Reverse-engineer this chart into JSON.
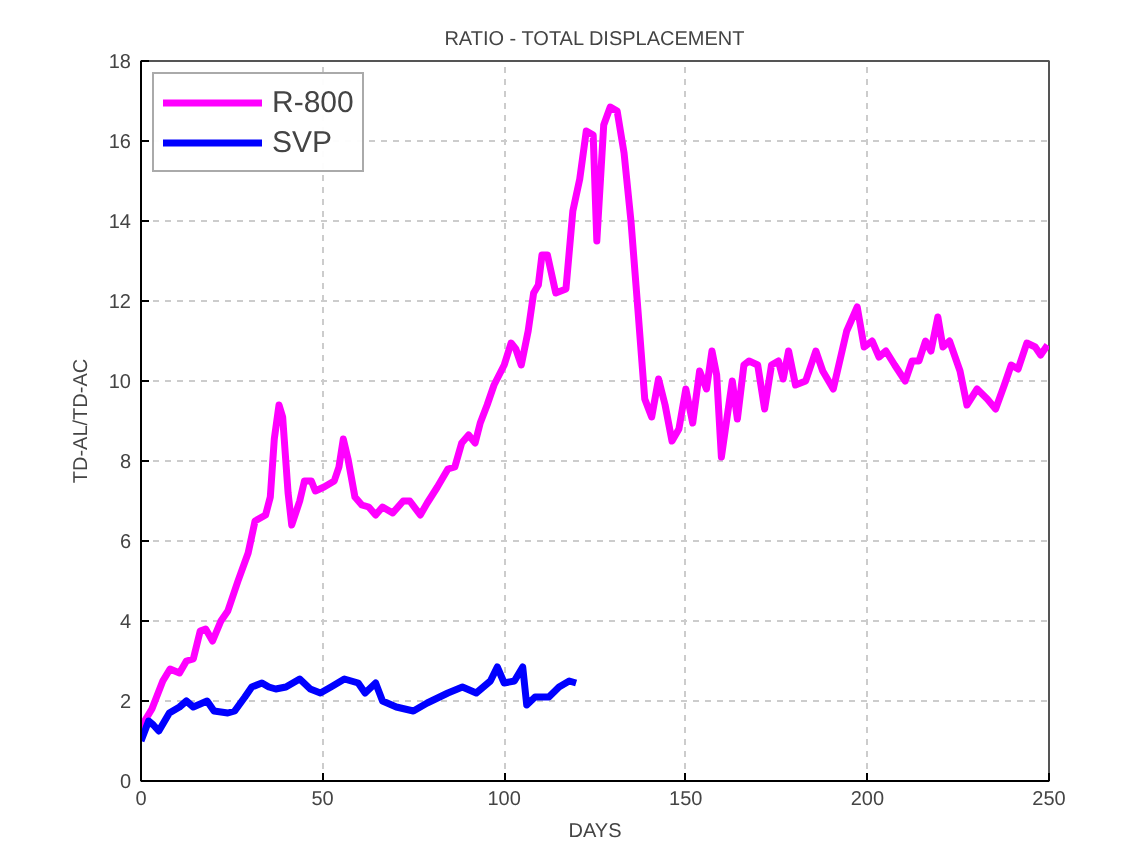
{
  "chart_data": {
    "type": "line",
    "title": "RATIO - TOTAL DISPLACEMENT",
    "xlabel": "DAYS",
    "ylabel": "TD-AL/TD-AC",
    "xlim": [
      0,
      250
    ],
    "ylim": [
      0,
      18
    ],
    "xticks": [
      0,
      50,
      100,
      150,
      200,
      250
    ],
    "yticks": [
      0,
      2,
      4,
      6,
      8,
      10,
      12,
      14,
      16,
      18
    ],
    "grid": true,
    "legend": "top left",
    "line_style": "solid",
    "marker": "none",
    "series": [
      {
        "name": "R-800",
        "color": "#ff00ff",
        "x": [
          0,
          3,
          6,
          8,
          10.6,
          12.5,
          14.4,
          16.3,
          17.8,
          19.7,
          22,
          23.9,
          26.7,
          29.5,
          31.4,
          34.3,
          35.6,
          36.7,
          38,
          39,
          40.5,
          41.5,
          43.7,
          45,
          46.9,
          48,
          50.4,
          53.2,
          54.5,
          55.7,
          57,
          58.9,
          60.8,
          62.7,
          64.6,
          66.5,
          69.3,
          72.2,
          74,
          76.9,
          78.8,
          81.6,
          84.5,
          86.4,
          88.3,
          90.2,
          92,
          93.4,
          95.3,
          97.2,
          100,
          101.9,
          103.2,
          104.7,
          106.6,
          108.1,
          109.4,
          110.4,
          111.9,
          114.2,
          117,
          118.9,
          120.8,
          122.6,
          124.5,
          125.5,
          127.4,
          129.2,
          131.1,
          133,
          134.9,
          136.8,
          138.7,
          140.6,
          142.5,
          144.3,
          146.2,
          148.1,
          150,
          151.9,
          153.8,
          155.7,
          157.2,
          158.5,
          159.8,
          161.3,
          162.8,
          164.2,
          166,
          167.4,
          169.8,
          171.7,
          173.6,
          175.5,
          176.8,
          178.3,
          180.2,
          183,
          185.8,
          187.7,
          190.6,
          194.3,
          197.2,
          199.1,
          201.3,
          203.2,
          205.1,
          207.5,
          210.4,
          212.3,
          214.2,
          216,
          217.5,
          219.4,
          220.8,
          222.6,
          225.5,
          227.4,
          230.2,
          233,
          235.3,
          237.7,
          239.6,
          241.5,
          243.9,
          246.2,
          247.7,
          249.6
        ],
        "values": [
          1.35,
          1.8,
          2.5,
          2.8,
          2.7,
          3.0,
          3.05,
          3.75,
          3.8,
          3.5,
          4.0,
          4.25,
          5.0,
          5.7,
          6.5,
          6.65,
          7.1,
          8.55,
          9.4,
          9.1,
          7.2,
          6.4,
          7.0,
          7.5,
          7.5,
          7.25,
          7.35,
          7.5,
          7.85,
          8.55,
          8.05,
          7.1,
          6.9,
          6.85,
          6.65,
          6.85,
          6.7,
          7.0,
          7.0,
          6.65,
          6.95,
          7.35,
          7.8,
          7.85,
          8.45,
          8.65,
          8.45,
          8.95,
          9.4,
          9.9,
          10.4,
          10.95,
          10.8,
          10.4,
          11.25,
          12.2,
          12.4,
          13.15,
          13.15,
          12.2,
          12.3,
          14.25,
          15.05,
          16.25,
          16.15,
          13.5,
          16.4,
          16.85,
          16.75,
          15.7,
          14.0,
          11.8,
          9.55,
          9.1,
          10.05,
          9.4,
          8.5,
          8.8,
          9.8,
          8.95,
          10.25,
          9.8,
          10.75,
          10.15,
          8.1,
          9.05,
          10.0,
          9.05,
          10.4,
          10.5,
          10.4,
          9.3,
          10.4,
          10.5,
          10.05,
          10.75,
          9.9,
          10.0,
          10.75,
          10.25,
          9.8,
          11.25,
          11.85,
          10.85,
          11.0,
          10.6,
          10.75,
          10.4,
          10.0,
          10.5,
          10.5,
          11.0,
          10.75,
          11.6,
          10.85,
          11.0,
          10.25,
          9.4,
          9.8,
          9.55,
          9.3,
          9.9,
          10.4,
          10.3,
          10.95,
          10.85,
          10.65,
          10.9
        ]
      },
      {
        "name": "SVP",
        "color": "#0000ff",
        "x": [
          0,
          2.1,
          3.4,
          4.9,
          7.8,
          10.6,
          12.5,
          14.4,
          18.2,
          20.1,
          23.9,
          25.8,
          28.6,
          30.5,
          33.3,
          35.2,
          37.1,
          39.9,
          43.7,
          46.6,
          49.4,
          52.3,
          56,
          59.8,
          61.7,
          64.6,
          66.5,
          70.3,
          75,
          78.8,
          84.5,
          88.5,
          92.3,
          96.2,
          98.1,
          100,
          102.8,
          105.1,
          106.2,
          108.5,
          112.3,
          115.1,
          117.9,
          119.8
        ],
        "values": [
          1.0,
          1.5,
          1.4,
          1.25,
          1.7,
          1.85,
          2.0,
          1.85,
          2.0,
          1.75,
          1.7,
          1.75,
          2.1,
          2.35,
          2.45,
          2.35,
          2.3,
          2.35,
          2.55,
          2.3,
          2.2,
          2.35,
          2.55,
          2.45,
          2.2,
          2.45,
          2.0,
          1.85,
          1.75,
          1.95,
          2.2,
          2.35,
          2.2,
          2.5,
          2.85,
          2.45,
          2.5,
          2.85,
          1.9,
          2.1,
          2.1,
          2.35,
          2.5,
          2.45
        ]
      }
    ]
  }
}
